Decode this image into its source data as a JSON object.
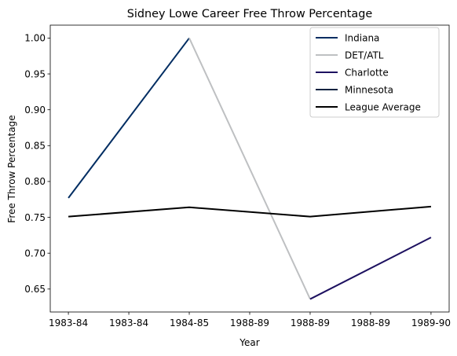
{
  "chart_data": {
    "type": "line",
    "title": "Sidney Lowe Career Free Throw Percentage",
    "xlabel": "Year",
    "ylabel": "Free Throw Percentage",
    "x_tick_labels": [
      "1983-84",
      "1983-84",
      "1984-85",
      "1988-89",
      "1988-89",
      "1988-89",
      "1989-90"
    ],
    "x_positions": [
      0,
      1,
      2,
      3,
      4,
      5,
      6
    ],
    "xlim": [
      -0.3,
      6.3
    ],
    "ylim": [
      0.618,
      1.018
    ],
    "y_ticks": [
      "0.65",
      "0.70",
      "0.75",
      "0.80",
      "0.85",
      "0.90",
      "0.95",
      "1.00"
    ],
    "grid": false,
    "legend_position": "top-right",
    "series": [
      {
        "name": "Indiana",
        "color": "#002D62",
        "x": [
          0,
          2
        ],
        "values": [
          0.777,
          1.0
        ]
      },
      {
        "name": "DET/ATL",
        "color": "#BEC0C2",
        "x": [
          2,
          4
        ],
        "values": [
          1.0,
          0.636
        ]
      },
      {
        "name": "Charlotte",
        "color": "#1D1160",
        "x": [
          4,
          6
        ],
        "values": [
          0.636,
          0.722
        ]
      },
      {
        "name": "Minnesota",
        "color": "#0C2340",
        "x": [],
        "values": []
      },
      {
        "name": "League Average",
        "color": "#000000",
        "x": [
          0,
          2,
          4,
          6
        ],
        "values": [
          0.751,
          0.764,
          0.751,
          0.765
        ]
      }
    ]
  }
}
